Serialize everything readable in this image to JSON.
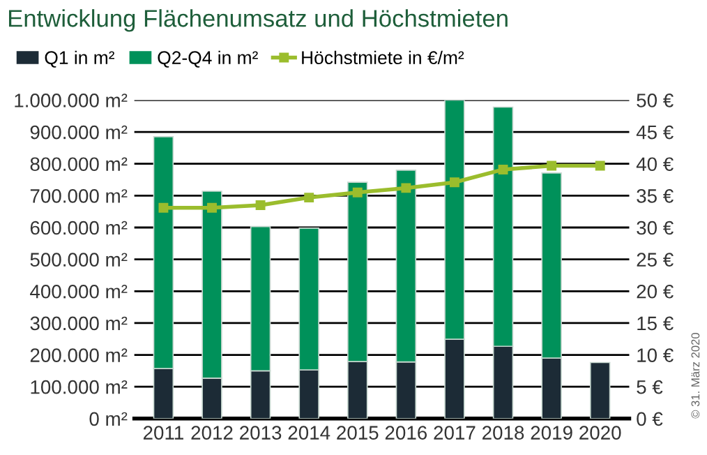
{
  "chart_data": {
    "type": "bar",
    "title": "Entwicklung Flächenumsatz und Höchstmieten",
    "stacked": true,
    "categories": [
      "2011",
      "2012",
      "2013",
      "2014",
      "2015",
      "2016",
      "2017",
      "2018",
      "2019",
      "2020"
    ],
    "series": [
      {
        "name": "Q1 in m²",
        "color": "#1c2b36",
        "values": [
          157000,
          127000,
          150000,
          153000,
          179000,
          178000,
          249000,
          227000,
          190000,
          176000
        ]
      },
      {
        "name": "Q2-Q4 in m²",
        "color": "#00915a",
        "values": [
          728000,
          587000,
          453000,
          445000,
          563000,
          602000,
          751000,
          751000,
          581000,
          null
        ]
      },
      {
        "name": "Höchstmiete in €/m²",
        "color": "#9bbd2d",
        "type": "line",
        "axis": "y2",
        "marker": "square",
        "values": [
          33.1,
          33.1,
          33.5,
          34.7,
          35.5,
          36.2,
          37.1,
          39.1,
          39.7,
          39.7
        ]
      }
    ],
    "ylim": [
      0,
      1000000
    ],
    "yticks": [
      {
        "value": 0,
        "label": "0 m²"
      },
      {
        "value": 100000,
        "label": "100.000 m²"
      },
      {
        "value": 200000,
        "label": "200.000 m²"
      },
      {
        "value": 300000,
        "label": "300.000 m²"
      },
      {
        "value": 400000,
        "label": "400.000 m²"
      },
      {
        "value": 500000,
        "label": "500.000 m²"
      },
      {
        "value": 600000,
        "label": "600.000 m²"
      },
      {
        "value": 700000,
        "label": "700.000 m²"
      },
      {
        "value": 800000,
        "label": "800.000 m²"
      },
      {
        "value": 900000,
        "label": "900.000 m²"
      },
      {
        "value": 1000000,
        "label": "1.000.000 m²"
      }
    ],
    "y2lim": [
      0,
      50
    ],
    "y2ticks": [
      {
        "value": 0,
        "label": "0 €"
      },
      {
        "value": 5,
        "label": "5 €"
      },
      {
        "value": 10,
        "label": "10 €"
      },
      {
        "value": 15,
        "label": "15 €"
      },
      {
        "value": 20,
        "label": "20 €"
      },
      {
        "value": 25,
        "label": "25 €"
      },
      {
        "value": 30,
        "label": "30 €"
      },
      {
        "value": 35,
        "label": "35 €"
      },
      {
        "value": 40,
        "label": "40 €"
      },
      {
        "value": 45,
        "label": "45 €"
      },
      {
        "value": 50,
        "label": "50 €"
      }
    ],
    "grid": "y",
    "legend": "top left",
    "annotations": [
      "© 31. März 2020"
    ]
  }
}
